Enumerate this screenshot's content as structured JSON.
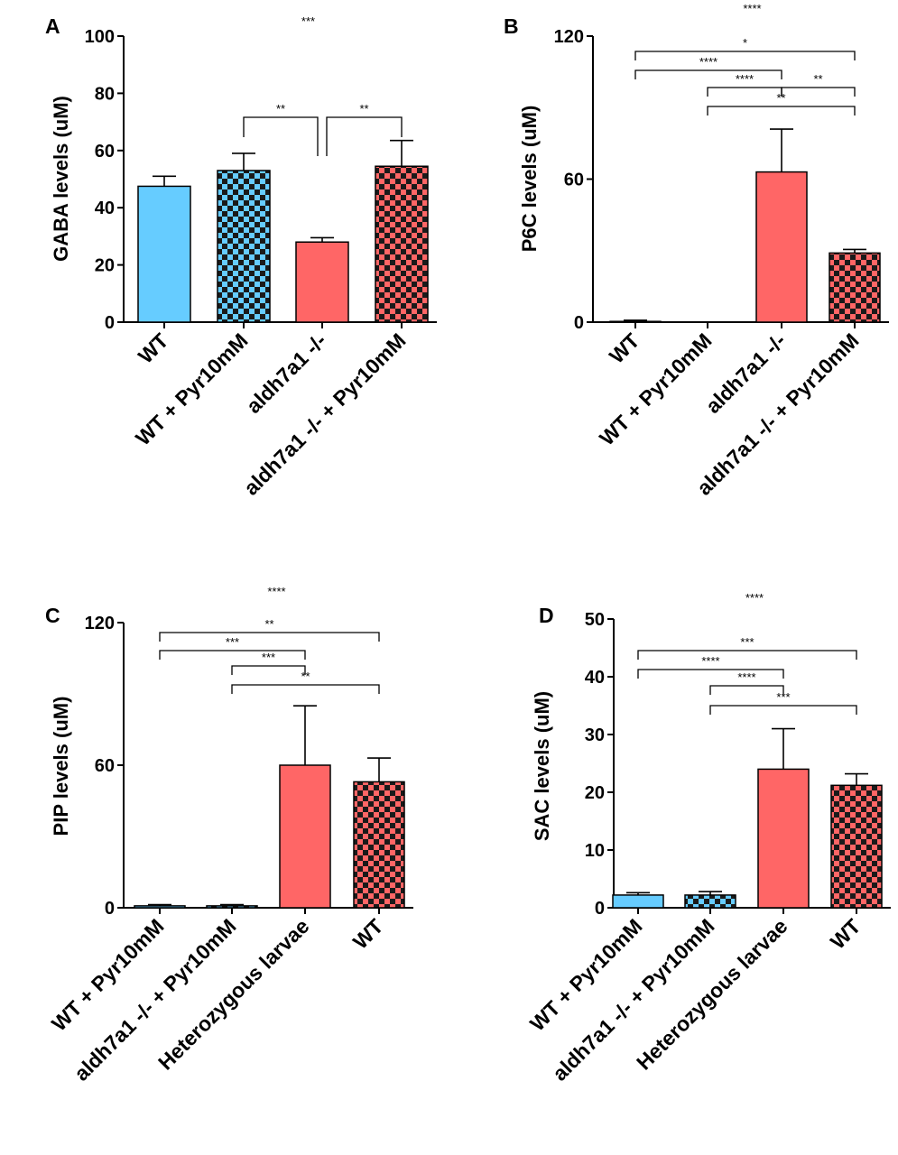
{
  "colors": {
    "blue": "#66ccff",
    "red": "#ff6666",
    "checker_dark": "#1a1a1a"
  },
  "chart_data": [
    {
      "type": "bar",
      "panel": "A",
      "ylabel": "GABA levels (uM)",
      "ylim": [
        0,
        100
      ],
      "yticks": [
        0,
        20,
        40,
        60,
        80,
        100
      ],
      "categories": [
        "WT",
        "WT + Pyr10mM",
        "aldh7a1 -/-",
        "aldh7a1 -/- + Pyr10mM"
      ],
      "values": [
        47.5,
        53,
        28,
        54.5
      ],
      "errors": [
        3.5,
        6,
        1.5,
        9
      ],
      "fills": [
        "blue",
        "blue-checker",
        "red",
        "red-checker"
      ],
      "overall_significance": "***",
      "comparisons": [
        {
          "from": 1,
          "to": 2,
          "label": "**"
        },
        {
          "from": 2,
          "to": 3,
          "label": "**"
        }
      ]
    },
    {
      "type": "bar",
      "panel": "B",
      "ylabel": "P6C levels (uM)",
      "ylim": [
        0,
        120
      ],
      "yticks": [
        0,
        60,
        120
      ],
      "categories": [
        "WT",
        "WT + Pyr10mM",
        "aldh7a1 -/-",
        "aldh7a1 -/- + Pyr10mM"
      ],
      "values": [
        0.3,
        0,
        63,
        29
      ],
      "errors": [
        0.5,
        0,
        18,
        1.5
      ],
      "fills": [
        "blue",
        "blue-checker",
        "red",
        "red-checker"
      ],
      "overall_significance": "****",
      "comparisons": [
        {
          "from": 0,
          "to": 3,
          "label": "*"
        },
        {
          "from": 0,
          "to": 2,
          "label": "****"
        },
        {
          "from": 1,
          "to": 2,
          "label": "****"
        },
        {
          "from": 2,
          "to": 3,
          "label": "**"
        },
        {
          "from": 1,
          "to": 3,
          "label": "**"
        }
      ]
    },
    {
      "type": "bar",
      "panel": "C",
      "ylabel": "PIP levels (uM)",
      "ylim": [
        0,
        120
      ],
      "yticks": [
        0,
        60,
        120
      ],
      "categories": [
        "WT + Pyr10mM",
        "aldh7a1 -/- + Pyr10mM",
        "Heterozygous larvae",
        "WT"
      ],
      "values": [
        0.8,
        0.8,
        60,
        53
      ],
      "errors": [
        0.5,
        0.5,
        25,
        10
      ],
      "fills": [
        "blue",
        "blue-checker",
        "red",
        "red-checker"
      ],
      "overall_significance": "****",
      "comparisons": [
        {
          "from": 0,
          "to": 3,
          "label": "**"
        },
        {
          "from": 0,
          "to": 2,
          "label": "***"
        },
        {
          "from": 1,
          "to": 2,
          "label": "***"
        },
        {
          "from": 1,
          "to": 3,
          "label": "**"
        }
      ]
    },
    {
      "type": "bar",
      "panel": "D",
      "ylabel": "SAC levels (uM)",
      "ylim": [
        0,
        50
      ],
      "yticks": [
        0,
        10,
        20,
        30,
        40,
        50
      ],
      "categories": [
        "WT + Pyr10mM",
        "aldh7a1 -/- + Pyr10mM",
        "Heterozygous larvae",
        "WT"
      ],
      "values": [
        2.2,
        2.2,
        24,
        21.2
      ],
      "errors": [
        0.4,
        0.6,
        7,
        2
      ],
      "fills": [
        "blue",
        "blue-checker",
        "red",
        "red-checker"
      ],
      "overall_significance": "****",
      "comparisons": [
        {
          "from": 0,
          "to": 3,
          "label": "***"
        },
        {
          "from": 0,
          "to": 2,
          "label": "****"
        },
        {
          "from": 1,
          "to": 2,
          "label": "****"
        },
        {
          "from": 1,
          "to": 3,
          "label": "***"
        }
      ]
    }
  ]
}
